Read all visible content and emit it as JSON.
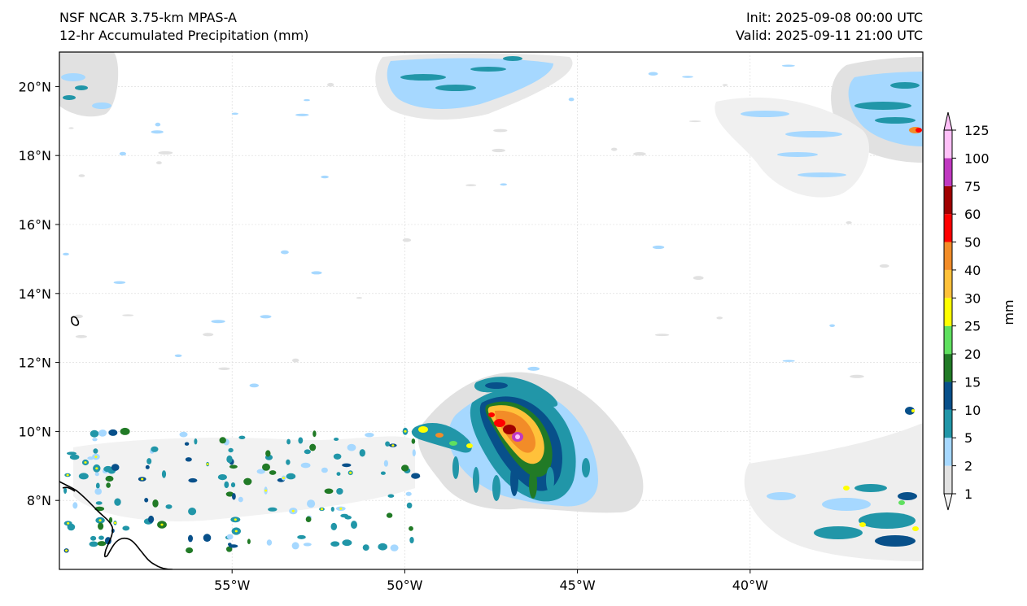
{
  "header": {
    "model": "NSF NCAR 3.75-km MPAS-A",
    "product": "12-hr Accumulated Precipitation (mm)",
    "init": "Init: 2025-09-08 00:00 UTC",
    "valid": "Valid: 2025-09-11 21:00 UTC"
  },
  "map": {
    "lon_range": [
      -60,
      -35
    ],
    "lat_range": [
      6,
      21
    ],
    "lon_ticks": [
      "55°W",
      "50°W",
      "45°W",
      "40°W"
    ],
    "lon_tick_values": [
      -55,
      -50,
      -45,
      -40
    ],
    "lat_ticks": [
      "20°N",
      "18°N",
      "16°N",
      "14°N",
      "12°N",
      "10°N",
      "8°N"
    ],
    "lat_tick_values": [
      20,
      18,
      16,
      14,
      12,
      10,
      8
    ]
  },
  "colorbar": {
    "label": "mm",
    "levels": [
      "1",
      "2",
      "5",
      "10",
      "15",
      "20",
      "25",
      "30",
      "40",
      "50",
      "60",
      "75",
      "100",
      "125"
    ],
    "colors": [
      "#e1e1e1",
      "#a6d8ff",
      "#2196a8",
      "#08508a",
      "#217a26",
      "#5fe05f",
      "#ffff00",
      "#ffc13a",
      "#f28c28",
      "#ff0000",
      "#a00000",
      "#c038c0",
      "#ffc0f8"
    ]
  }
}
